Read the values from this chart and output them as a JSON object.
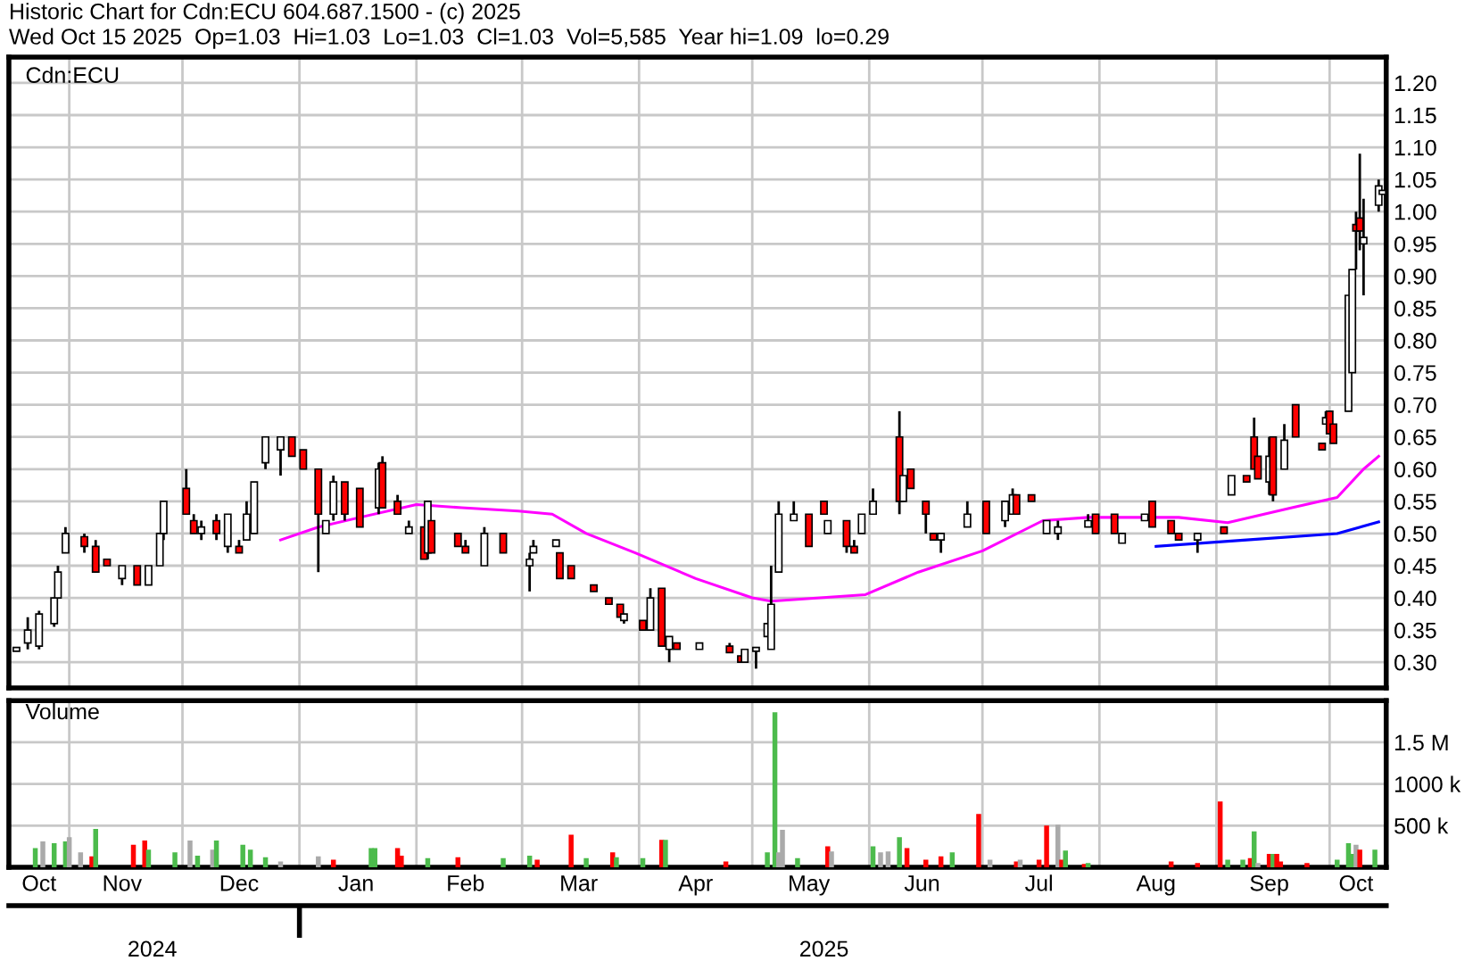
{
  "chart_data": [
    {
      "type": "candlestick",
      "title": "Historic Chart for Cdn:ECU 604.687.1500 - (c) 2025",
      "subtitle": "Wed Oct 15 2025  Op=1.03  Hi=1.03  Lo=1.03  Cl=1.03  Vol=5,585  Year hi=1.09  lo=0.29",
      "annotations": [
        "Cdn:ECU"
      ],
      "x": [
        "2024-10-18",
        "2024-10-21",
        "2024-10-24",
        "2024-10-28",
        "2024-10-29",
        "2024-10-31",
        "2024-11-05",
        "2024-11-08",
        "2024-11-11",
        "2024-11-15",
        "2024-11-19",
        "2024-11-22",
        "2024-11-25",
        "2024-11-26",
        "2024-12-02",
        "2024-12-04",
        "2024-12-06",
        "2024-12-10",
        "2024-12-13",
        "2024-12-16",
        "2024-12-18",
        "2024-12-20",
        "2024-12-23",
        "2024-12-27",
        "2024-12-30",
        "2025-01-02",
        "2025-01-06",
        "2025-01-08",
        "2025-01-10",
        "2025-01-13",
        "2025-01-17",
        "2025-01-22",
        "2025-01-23",
        "2025-01-27",
        "2025-01-30",
        "2025-02-03",
        "2025-02-04",
        "2025-02-05",
        "2025-02-12",
        "2025-02-14",
        "2025-02-19",
        "2025-02-24",
        "2025-03-03",
        "2025-03-04",
        "2025-03-10",
        "2025-03-11",
        "2025-03-14",
        "2025-03-20",
        "2025-03-24",
        "2025-03-27",
        "2025-03-28",
        "2025-04-02",
        "2025-04-04",
        "2025-04-07",
        "2025-04-09",
        "2025-04-11",
        "2025-04-17",
        "2025-04-25",
        "2025-04-28",
        "2025-04-29",
        "2025-05-02",
        "2025-05-05",
        "2025-05-06",
        "2025-05-08",
        "2025-05-12",
        "2025-05-16",
        "2025-05-20",
        "2025-05-21",
        "2025-05-26",
        "2025-05-28",
        "2025-05-30",
        "2025-06-02",
        "2025-06-09",
        "2025-06-10",
        "2025-06-12",
        "2025-06-16",
        "2025-06-18",
        "2025-06-20",
        "2025-06-27",
        "2025-07-02",
        "2025-07-07",
        "2025-07-09",
        "2025-07-10",
        "2025-07-14",
        "2025-07-18",
        "2025-07-21",
        "2025-07-29",
        "2025-07-31",
        "2025-08-05",
        "2025-08-07",
        "2025-08-13",
        "2025-08-15",
        "2025-08-20",
        "2025-08-22",
        "2025-08-27",
        "2025-09-03",
        "2025-09-05",
        "2025-09-09",
        "2025-09-11",
        "2025-09-12",
        "2025-09-15",
        "2025-09-16",
        "2025-09-19",
        "2025-09-22",
        "2025-09-29",
        "2025-09-30",
        "2025-10-01",
        "2025-10-02",
        "2025-10-06",
        "2025-10-07",
        "2025-10-08",
        "2025-10-09",
        "2025-10-10",
        "2025-10-14",
        "2025-10-15"
      ],
      "ohlc": [
        [
          0.32,
          0.32,
          0.32,
          0.32
        ],
        [
          0.33,
          0.37,
          0.32,
          0.35
        ],
        [
          0.325,
          0.38,
          0.32,
          0.375
        ],
        [
          0.36,
          0.4,
          0.355,
          0.4
        ],
        [
          0.4,
          0.45,
          0.4,
          0.44
        ],
        [
          0.47,
          0.51,
          0.47,
          0.5
        ],
        [
          0.495,
          0.5,
          0.47,
          0.48
        ],
        [
          0.48,
          0.49,
          0.44,
          0.44
        ],
        [
          0.46,
          0.46,
          0.45,
          0.45
        ],
        [
          0.43,
          0.45,
          0.42,
          0.45
        ],
        [
          0.45,
          0.45,
          0.42,
          0.42
        ],
        [
          0.42,
          0.45,
          0.42,
          0.45
        ],
        [
          0.45,
          0.5,
          0.45,
          0.5
        ],
        [
          0.5,
          0.55,
          0.49,
          0.55
        ],
        [
          0.57,
          0.6,
          0.53,
          0.53
        ],
        [
          0.52,
          0.53,
          0.5,
          0.5
        ],
        [
          0.5,
          0.52,
          0.49,
          0.51
        ],
        [
          0.52,
          0.53,
          0.49,
          0.5
        ],
        [
          0.48,
          0.53,
          0.47,
          0.53
        ],
        [
          0.48,
          0.49,
          0.47,
          0.47
        ],
        [
          0.49,
          0.55,
          0.49,
          0.53
        ],
        [
          0.5,
          0.58,
          0.5,
          0.58
        ],
        [
          0.61,
          0.65,
          0.6,
          0.65
        ],
        [
          0.63,
          0.65,
          0.59,
          0.65
        ],
        [
          0.65,
          0.65,
          0.62,
          0.62
        ],
        [
          0.63,
          0.63,
          0.6,
          0.6
        ],
        [
          0.6,
          0.6,
          0.44,
          0.53
        ],
        [
          0.5,
          0.52,
          0.5,
          0.52
        ],
        [
          0.53,
          0.59,
          0.52,
          0.58
        ],
        [
          0.58,
          0.58,
          0.52,
          0.53
        ],
        [
          0.57,
          0.57,
          0.51,
          0.51
        ],
        [
          0.54,
          0.61,
          0.53,
          0.6
        ],
        [
          0.61,
          0.62,
          0.54,
          0.54
        ],
        [
          0.55,
          0.56,
          0.53,
          0.53
        ],
        [
          0.5,
          0.52,
          0.5,
          0.51
        ],
        [
          0.51,
          0.51,
          0.46,
          0.46
        ],
        [
          0.47,
          0.55,
          0.46,
          0.55
        ],
        [
          0.52,
          0.52,
          0.47,
          0.47
        ],
        [
          0.5,
          0.5,
          0.48,
          0.48
        ],
        [
          0.48,
          0.49,
          0.47,
          0.47
        ],
        [
          0.45,
          0.51,
          0.45,
          0.5
        ],
        [
          0.5,
          0.5,
          0.47,
          0.47
        ],
        [
          0.45,
          0.47,
          0.41,
          0.46
        ],
        [
          0.47,
          0.49,
          0.47,
          0.48
        ],
        [
          0.48,
          0.49,
          0.48,
          0.49
        ],
        [
          0.47,
          0.47,
          0.43,
          0.43
        ],
        [
          0.45,
          0.45,
          0.43,
          0.43
        ],
        [
          0.42,
          0.42,
          0.41,
          0.41
        ],
        [
          0.4,
          0.4,
          0.39,
          0.39
        ],
        [
          0.39,
          0.39,
          0.37,
          0.37
        ],
        [
          0.365,
          0.375,
          0.36,
          0.375
        ],
        [
          0.365,
          0.365,
          0.35,
          0.35
        ],
        [
          0.35,
          0.415,
          0.35,
          0.4
        ],
        [
          0.415,
          0.415,
          0.325,
          0.325
        ],
        [
          0.32,
          0.34,
          0.3,
          0.34
        ],
        [
          0.33,
          0.33,
          0.32,
          0.32
        ],
        [
          0.32,
          0.33,
          0.32,
          0.33
        ],
        [
          0.325,
          0.33,
          0.315,
          0.315
        ],
        [
          0.31,
          0.31,
          0.3,
          0.3
        ],
        [
          0.3,
          0.32,
          0.3,
          0.32
        ],
        [
          0.32,
          0.32,
          0.29,
          0.32
        ],
        [
          0.34,
          0.36,
          0.34,
          0.36
        ],
        [
          0.32,
          0.45,
          0.32,
          0.39
        ],
        [
          0.44,
          0.55,
          0.44,
          0.53
        ],
        [
          0.52,
          0.55,
          0.52,
          0.53
        ],
        [
          0.53,
          0.53,
          0.48,
          0.48
        ],
        [
          0.55,
          0.55,
          0.53,
          0.53
        ],
        [
          0.5,
          0.52,
          0.5,
          0.52
        ],
        [
          0.52,
          0.52,
          0.47,
          0.48
        ],
        [
          0.48,
          0.49,
          0.47,
          0.47
        ],
        [
          0.5,
          0.53,
          0.5,
          0.53
        ],
        [
          0.53,
          0.57,
          0.53,
          0.55
        ],
        [
          0.65,
          0.69,
          0.53,
          0.55
        ],
        [
          0.55,
          0.59,
          0.55,
          0.59
        ],
        [
          0.6,
          0.6,
          0.57,
          0.57
        ],
        [
          0.55,
          0.55,
          0.5,
          0.53
        ],
        [
          0.5,
          0.5,
          0.49,
          0.49
        ],
        [
          0.49,
          0.5,
          0.47,
          0.5
        ],
        [
          0.51,
          0.55,
          0.51,
          0.53
        ],
        [
          0.55,
          0.55,
          0.5,
          0.5
        ],
        [
          0.52,
          0.55,
          0.51,
          0.55
        ],
        [
          0.53,
          0.57,
          0.53,
          0.56
        ],
        [
          0.56,
          0.56,
          0.53,
          0.53
        ],
        [
          0.56,
          0.56,
          0.55,
          0.55
        ],
        [
          0.5,
          0.52,
          0.5,
          0.52
        ],
        [
          0.5,
          0.52,
          0.49,
          0.51
        ],
        [
          0.51,
          0.53,
          0.51,
          0.52
        ],
        [
          0.53,
          0.53,
          0.5,
          0.5
        ],
        [
          0.53,
          0.53,
          0.5,
          0.5
        ],
        [
          0.485,
          0.5,
          0.485,
          0.5
        ],
        [
          0.52,
          0.53,
          0.52,
          0.53
        ],
        [
          0.55,
          0.55,
          0.51,
          0.51
        ],
        [
          0.52,
          0.52,
          0.5,
          0.5
        ],
        [
          0.5,
          0.5,
          0.49,
          0.49
        ],
        [
          0.49,
          0.5,
          0.47,
          0.5
        ],
        [
          0.51,
          0.51,
          0.5,
          0.5
        ],
        [
          0.56,
          0.59,
          0.56,
          0.59
        ],
        [
          0.59,
          0.59,
          0.58,
          0.58
        ],
        [
          0.65,
          0.68,
          0.6,
          0.6
        ],
        [
          0.62,
          0.62,
          0.585,
          0.585
        ],
        [
          0.58,
          0.65,
          0.56,
          0.62
        ],
        [
          0.65,
          0.65,
          0.55,
          0.56
        ],
        [
          0.6,
          0.67,
          0.6,
          0.645
        ],
        [
          0.7,
          0.7,
          0.65,
          0.65
        ],
        [
          0.64,
          0.64,
          0.63,
          0.63
        ],
        [
          0.67,
          0.69,
          0.67,
          0.68
        ],
        [
          0.69,
          0.69,
          0.655,
          0.655
        ],
        [
          0.67,
          0.67,
          0.64,
          0.64
        ],
        [
          0.69,
          0.87,
          0.69,
          0.87
        ],
        [
          0.75,
          0.91,
          0.75,
          0.91
        ],
        [
          0.98,
          1.0,
          0.91,
          0.97
        ],
        [
          0.99,
          1.09,
          0.94,
          0.97
        ],
        [
          0.95,
          1.02,
          0.87,
          0.96
        ],
        [
          1.01,
          1.05,
          1.0,
          1.04
        ],
        [
          1.03,
          1.03,
          1.03,
          1.03
        ]
      ],
      "colors": [
        "#ffffff",
        "#ffffff",
        "#ffffff",
        "#ffffff",
        "#ffffff",
        "#ffffff",
        "#ff0000",
        "#ff0000",
        "#ff0000",
        "#ffffff",
        "#ff0000",
        "#ffffff",
        "#ffffff",
        "#ffffff",
        "#ff0000",
        "#ff0000",
        "#ffffff",
        "#ff0000",
        "#ffffff",
        "#ff0000",
        "#ffffff",
        "#ffffff",
        "#ffffff",
        "#ffffff",
        "#ff0000",
        "#ff0000",
        "#ff0000",
        "#ffffff",
        "#ffffff",
        "#ff0000",
        "#ff0000",
        "#ffffff",
        "#ff0000",
        "#ff0000",
        "#ffffff",
        "#ff0000",
        "#ffffff",
        "#ff0000",
        "#ff0000",
        "#ff0000",
        "#ffffff",
        "#ff0000",
        "#ffffff",
        "#ffffff",
        "#ffffff",
        "#ff0000",
        "#ff0000",
        "#ff0000",
        "#ff0000",
        "#ff0000",
        "#ffffff",
        "#ff0000",
        "#ffffff",
        "#ff0000",
        "#ffffff",
        "#ff0000",
        "#ffffff",
        "#ff0000",
        "#ff0000",
        "#ffffff",
        "#ffffff",
        "#ffffff",
        "#ffffff",
        "#ffffff",
        "#ffffff",
        "#ff0000",
        "#ff0000",
        "#ffffff",
        "#ff0000",
        "#ff0000",
        "#ffffff",
        "#ffffff",
        "#ff0000",
        "#ffffff",
        "#ff0000",
        "#ff0000",
        "#ff0000",
        "#ffffff",
        "#ffffff",
        "#ff0000",
        "#ffffff",
        "#ffffff",
        "#ff0000",
        "#ff0000",
        "#ffffff",
        "#ffffff",
        "#ffffff",
        "#ff0000",
        "#ff0000",
        "#ffffff",
        "#ffffff",
        "#ff0000",
        "#ff0000",
        "#ff0000",
        "#ffffff",
        "#ff0000",
        "#ffffff",
        "#ff0000",
        "#ff0000",
        "#ff0000",
        "#ffffff",
        "#ff0000",
        "#ffffff",
        "#ff0000",
        "#ff0000",
        "#ffffff",
        "#ff0000",
        "#ff0000",
        "#ffffff",
        "#ffffff",
        "#ff0000",
        "#ff0000",
        "#ffffff",
        "#ffffff",
        "#ffffff"
      ],
      "series": [
        {
          "type": "line",
          "color": "#ff00ff",
          "x": [
            "2024-12-27",
            "2025-01-06",
            "2025-01-17",
            "2025-02-01",
            "2025-02-13",
            "2025-02-28",
            "2025-03-09",
            "2025-03-18",
            "2025-03-31",
            "2025-04-16",
            "2025-05-01",
            "2025-05-06",
            "2025-05-31",
            "2025-06-14",
            "2025-07-01",
            "2025-07-17",
            "2025-07-29",
            "2025-08-22",
            "2025-09-04",
            "2025-09-21",
            "2025-10-03",
            "2025-10-10",
            "2025-10-14"
          ],
          "values": [
            0.49,
            0.51,
            0.525,
            0.545,
            0.54,
            0.535,
            0.53,
            0.5,
            0.47,
            0.43,
            0.4,
            0.395,
            0.405,
            0.44,
            0.473,
            0.52,
            0.525,
            0.525,
            0.517,
            0.54,
            0.556,
            0.6,
            0.62
          ]
        },
        {
          "type": "line",
          "color": "#0000ff",
          "x": [
            "2025-08-16",
            "2025-09-09",
            "2025-10-03",
            "2025-10-14"
          ],
          "values": [
            0.48,
            0.49,
            0.5,
            0.518
          ]
        }
      ],
      "xlim": [
        "2024-10-16",
        "2025-10-16"
      ],
      "xticks": [
        {
          "value": "2024-11-01",
          "label": null
        },
        {
          "value": "2024-12-01",
          "label": null
        },
        {
          "value": "2025-01-01",
          "label": null
        },
        {
          "value": "2025-02-01",
          "label": null
        },
        {
          "value": "2025-03-01",
          "label": null
        },
        {
          "value": "2025-04-01",
          "label": null
        },
        {
          "value": "2025-05-01",
          "label": null
        },
        {
          "value": "2025-06-01",
          "label": null
        },
        {
          "value": "2025-07-01",
          "label": null
        },
        {
          "value": "2025-08-01",
          "label": null
        },
        {
          "value": "2025-09-01",
          "label": null
        },
        {
          "value": "2025-10-01",
          "label": null
        }
      ],
      "ylim": [
        0.26,
        1.24
      ],
      "yticks": [
        {
          "value": 0.3,
          "label": "0.30"
        },
        {
          "value": 0.35,
          "label": "0.35"
        },
        {
          "value": 0.4,
          "label": "0.40"
        },
        {
          "value": 0.45,
          "label": "0.45"
        },
        {
          "value": 0.5,
          "label": "0.50"
        },
        {
          "value": 0.55,
          "label": "0.55"
        },
        {
          "value": 0.6,
          "label": "0.60"
        },
        {
          "value": 0.65,
          "label": "0.65"
        },
        {
          "value": 0.7,
          "label": "0.70"
        },
        {
          "value": 0.75,
          "label": "0.75"
        },
        {
          "value": 0.8,
          "label": "0.80"
        },
        {
          "value": 0.85,
          "label": "0.85"
        },
        {
          "value": 0.9,
          "label": "0.90"
        },
        {
          "value": 0.95,
          "label": "0.95"
        },
        {
          "value": 1.0,
          "label": "1.00"
        },
        {
          "value": 1.05,
          "label": "1.05"
        },
        {
          "value": 1.1,
          "label": "1.10"
        },
        {
          "value": 1.15,
          "label": "1.15"
        },
        {
          "value": 1.2,
          "label": "1.20"
        }
      ],
      "grid": true,
      "tick_labels": "y"
    },
    {
      "type": "bar",
      "annotations": [
        "Volume"
      ],
      "x": [
        "2024-10-23",
        "2024-10-25",
        "2024-10-28",
        "2024-10-31",
        "2024-11-01",
        "2024-11-04",
        "2024-11-07",
        "2024-11-08",
        "2024-11-18",
        "2024-11-21",
        "2024-11-22",
        "2024-11-29",
        "2024-12-03",
        "2024-12-05",
        "2024-12-09",
        "2024-12-10",
        "2024-12-17",
        "2024-12-19",
        "2024-12-23",
        "2024-12-27",
        "2025-01-06",
        "2025-01-10",
        "2025-01-20",
        "2025-01-21",
        "2025-01-27",
        "2025-01-28",
        "2025-02-04",
        "2025-02-12",
        "2025-02-24",
        "2025-03-03",
        "2025-03-05",
        "2025-03-14",
        "2025-03-18",
        "2025-03-25",
        "2025-03-26",
        "2025-04-02",
        "2025-04-07",
        "2025-04-08",
        "2025-04-24",
        "2025-05-05",
        "2025-05-07",
        "2025-05-08",
        "2025-05-09",
        "2025-05-13",
        "2025-05-21",
        "2025-05-22",
        "2025-06-02",
        "2025-06-04",
        "2025-06-06",
        "2025-06-09",
        "2025-06-11",
        "2025-06-16",
        "2025-06-20",
        "2025-06-23",
        "2025-06-30",
        "2025-07-03",
        "2025-07-10",
        "2025-07-11",
        "2025-07-16",
        "2025-07-18",
        "2025-07-21",
        "2025-07-22",
        "2025-07-23",
        "2025-07-28",
        "2025-07-29",
        "2025-08-20",
        "2025-08-27",
        "2025-09-02",
        "2025-09-04",
        "2025-09-08",
        "2025-09-10",
        "2025-09-11",
        "2025-09-12",
        "2025-09-15",
        "2025-09-16",
        "2025-09-17",
        "2025-09-18",
        "2025-09-25",
        "2025-10-03",
        "2025-10-06",
        "2025-10-07",
        "2025-10-08",
        "2025-10-09",
        "2025-10-13"
      ],
      "values": [
        230000,
        310000,
        290000,
        310000,
        360000,
        180000,
        130000,
        460000,
        270000,
        320000,
        210000,
        180000,
        320000,
        140000,
        210000,
        320000,
        270000,
        210000,
        120000,
        70000,
        130000,
        90000,
        230000,
        230000,
        230000,
        140000,
        110000,
        120000,
        110000,
        140000,
        90000,
        390000,
        110000,
        180000,
        120000,
        110000,
        330000,
        330000,
        70000,
        180000,
        1860000,
        180000,
        450000,
        110000,
        250000,
        190000,
        250000,
        180000,
        190000,
        360000,
        230000,
        90000,
        130000,
        180000,
        640000,
        90000,
        70000,
        90000,
        90000,
        500000,
        510000,
        90000,
        200000,
        40000,
        50000,
        70000,
        50000,
        790000,
        90000,
        90000,
        110000,
        430000,
        50000,
        160000,
        160000,
        160000,
        70000,
        50000,
        90000,
        290000,
        160000,
        270000,
        210000,
        210000
      ],
      "colors": [
        "#4cbb4c",
        "#aaaaaa",
        "#4cbb4c",
        "#4cbb4c",
        "#aaaaaa",
        "#aaaaaa",
        "#ff0000",
        "#4cbb4c",
        "#ff0000",
        "#ff0000",
        "#4cbb4c",
        "#4cbb4c",
        "#aaaaaa",
        "#4cbb4c",
        "#aaaaaa",
        "#4cbb4c",
        "#4cbb4c",
        "#4cbb4c",
        "#4cbb4c",
        "#aaaaaa",
        "#aaaaaa",
        "#ff0000",
        "#4cbb4c",
        "#4cbb4c",
        "#ff0000",
        "#ff0000",
        "#4cbb4c",
        "#ff0000",
        "#4cbb4c",
        "#4cbb4c",
        "#ff0000",
        "#ff0000",
        "#4cbb4c",
        "#ff0000",
        "#4cbb4c",
        "#4cbb4c",
        "#ff0000",
        "#4cbb4c",
        "#ff0000",
        "#4cbb4c",
        "#4cbb4c",
        "#aaaaaa",
        "#aaaaaa",
        "#4cbb4c",
        "#ff0000",
        "#aaaaaa",
        "#4cbb4c",
        "#aaaaaa",
        "#aaaaaa",
        "#4cbb4c",
        "#ff0000",
        "#ff0000",
        "#ff0000",
        "#4cbb4c",
        "#ff0000",
        "#aaaaaa",
        "#ff0000",
        "#aaaaaa",
        "#ff0000",
        "#ff0000",
        "#aaaaaa",
        "#ff0000",
        "#4cbb4c",
        "#ff0000",
        "#4cbb4c",
        "#ff0000",
        "#ff0000",
        "#ff0000",
        "#4cbb4c",
        "#4cbb4c",
        "#ff0000",
        "#4cbb4c",
        "#aaaaaa",
        "#ff0000",
        "#4cbb4c",
        "#ff0000",
        "#ff0000",
        "#ff0000",
        "#4cbb4c",
        "#4cbb4c",
        "#4cbb4c",
        "#aaaaaa",
        "#ff0000",
        "#4cbb4c"
      ],
      "xlim": [
        "2024-10-16",
        "2025-10-16"
      ],
      "xticks": [
        {
          "value": "2024-10-24",
          "label": "Oct"
        },
        {
          "value": "2024-11-01",
          "label": null
        },
        {
          "value": "2024-11-15",
          "label": "Nov"
        },
        {
          "value": "2024-12-01",
          "label": null
        },
        {
          "value": "2024-12-16",
          "label": "Dec"
        },
        {
          "value": "2025-01-01",
          "label": null
        },
        {
          "value": "2025-01-16",
          "label": "Jan"
        },
        {
          "value": "2025-02-01",
          "label": null
        },
        {
          "value": "2025-02-14",
          "label": "Feb"
        },
        {
          "value": "2025-03-01",
          "label": null
        },
        {
          "value": "2025-03-16",
          "label": "Mar"
        },
        {
          "value": "2025-04-01",
          "label": null
        },
        {
          "value": "2025-04-16",
          "label": "Apr"
        },
        {
          "value": "2025-05-01",
          "label": null
        },
        {
          "value": "2025-05-16",
          "label": "May"
        },
        {
          "value": "2025-06-01",
          "label": null
        },
        {
          "value": "2025-06-15",
          "label": "Jun"
        },
        {
          "value": "2025-07-01",
          "label": null
        },
        {
          "value": "2025-07-16",
          "label": "Jul"
        },
        {
          "value": "2025-08-01",
          "label": null
        },
        {
          "value": "2025-08-16",
          "label": "Aug"
        },
        {
          "value": "2025-09-01",
          "label": null
        },
        {
          "value": "2025-09-15",
          "label": "Sep"
        },
        {
          "value": "2025-10-01",
          "label": null
        },
        {
          "value": "2025-10-08",
          "label": "Oct"
        }
      ],
      "x2lim": [
        "2024-10-16",
        "2025-10-16"
      ],
      "x2ticks": [
        {
          "value": "2024-11-23",
          "label": "2024"
        },
        {
          "value": "2025-01-01",
          "label": null
        },
        {
          "value": "2025-05-20",
          "label": "2025"
        }
      ],
      "ylim": [
        0,
        2000000
      ],
      "yticks": [
        {
          "value": 500000,
          "label": "500 k"
        },
        {
          "value": 1000000,
          "label": "1000 k"
        },
        {
          "value": 1500000,
          "label": "1.5 M"
        }
      ],
      "grid": true
    }
  ]
}
